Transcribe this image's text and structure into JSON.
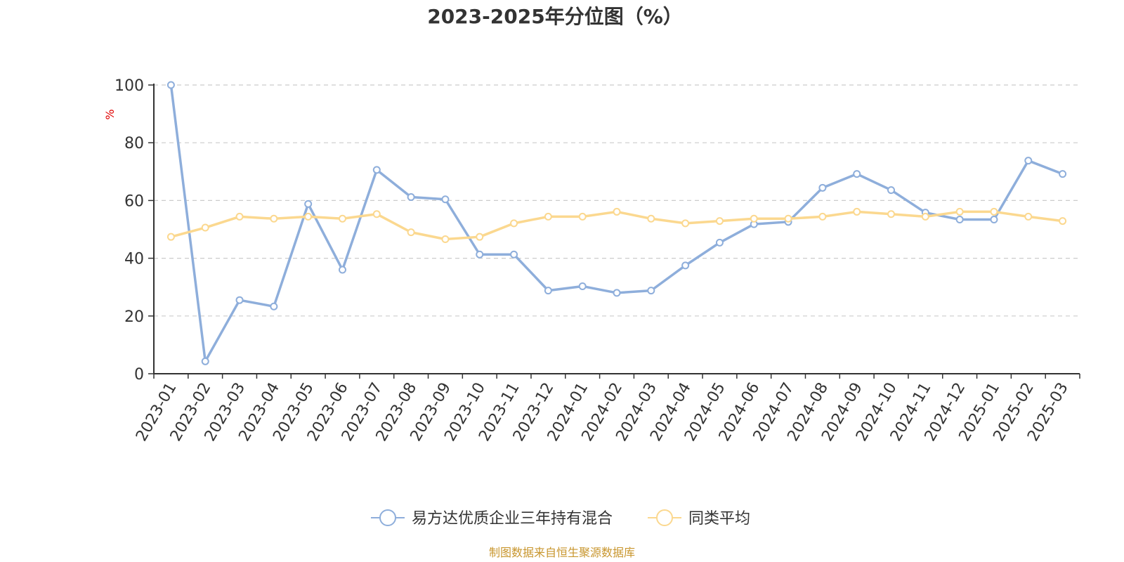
{
  "chart_data": {
    "type": "line",
    "title": "2023-2025年分位图（%）",
    "ylabel": "%",
    "xlabel": "",
    "ylim": [
      0,
      100
    ],
    "yticks": [
      0,
      20,
      40,
      60,
      80,
      100
    ],
    "grid": true,
    "legend_position": "bottom",
    "categories": [
      "2023-01",
      "2023-02",
      "2023-03",
      "2023-04",
      "2023-05",
      "2023-06",
      "2023-07",
      "2023-08",
      "2023-09",
      "2023-10",
      "2023-11",
      "2023-12",
      "2024-01",
      "2024-02",
      "2024-03",
      "2024-04",
      "2024-05",
      "2024-06",
      "2024-07",
      "2024-08",
      "2024-09",
      "2024-10",
      "2024-11",
      "2024-12",
      "2025-01",
      "2025-02",
      "2025-03"
    ],
    "series": [
      {
        "name": "易方达优质企业三年持有混合",
        "color": "#8eaedb",
        "values": [
          100,
          4.3,
          25.5,
          23.3,
          58.8,
          36.0,
          70.6,
          61.2,
          60.4,
          41.3,
          41.3,
          28.8,
          30.3,
          28.0,
          28.8,
          37.5,
          45.4,
          51.8,
          52.6,
          64.4,
          69.2,
          63.6,
          55.8,
          53.4,
          53.4,
          73.8,
          69.2
        ]
      },
      {
        "name": "同类平均",
        "color": "#fbd88f",
        "values": [
          47.4,
          50.6,
          54.4,
          53.7,
          54.4,
          53.7,
          55.3,
          49.0,
          46.6,
          47.4,
          52.1,
          54.4,
          54.4,
          56.1,
          53.7,
          52.1,
          52.9,
          53.7,
          53.7,
          54.4,
          56.1,
          55.3,
          54.4,
          56.1,
          56.1,
          54.4,
          52.9
        ]
      }
    ]
  },
  "source_note": "制图数据来自恒生聚源数据库",
  "colors": {
    "axis": "#333333",
    "grid": "#cccccc",
    "unit": "#e00000",
    "source": "#c8962e"
  }
}
